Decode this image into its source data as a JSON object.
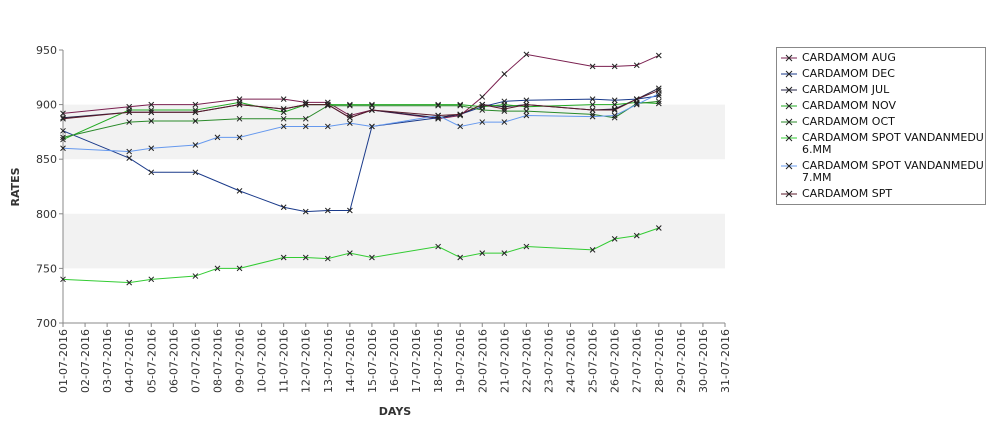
{
  "chart_data": {
    "type": "line",
    "title": "",
    "xlabel": "DAYS",
    "ylabel": "RATES",
    "ylim": [
      700,
      950
    ],
    "yticks": [
      700,
      750,
      800,
      850,
      900,
      950
    ],
    "grid": false,
    "legend_position": "right",
    "x_categories": [
      "01-07-2016",
      "02-07-2016",
      "03-07-2016",
      "04-07-2016",
      "05-07-2016",
      "06-07-2016",
      "07-07-2016",
      "08-07-2016",
      "09-07-2016",
      "10-07-2016",
      "11-07-2016",
      "12-07-2016",
      "13-07-2016",
      "14-07-2016",
      "15-07-2016",
      "16-07-2016",
      "17-07-2016",
      "18-07-2016",
      "19-07-2016",
      "20-07-2016",
      "21-07-2016",
      "22-07-2016",
      "23-07-2016",
      "24-07-2016",
      "25-07-2016",
      "26-07-2016",
      "27-07-2016",
      "28-07-2016",
      "29-07-2016",
      "30-07-2016",
      "31-07-2016"
    ],
    "series": [
      {
        "name": "CARDAMOM AUG",
        "color": "#7a1f4f",
        "dates": [
          "01-07-2016",
          "04-07-2016",
          "05-07-2016",
          "07-07-2016",
          "09-07-2016",
          "11-07-2016",
          "12-07-2016",
          "13-07-2016",
          "14-07-2016",
          "15-07-2016",
          "18-07-2016",
          "19-07-2016",
          "20-07-2016",
          "21-07-2016",
          "22-07-2016",
          "25-07-2016",
          "26-07-2016",
          "27-07-2016",
          "28-07-2016"
        ],
        "values": [
          892,
          898,
          900,
          900,
          905,
          905,
          902,
          902,
          890,
          895,
          887,
          890,
          907,
          928,
          946,
          935,
          935,
          936,
          945
        ]
      },
      {
        "name": "CARDAMOM DEC",
        "color": "#1a3a8a",
        "dates": [
          "01-07-2016",
          "04-07-2016",
          "05-07-2016",
          "07-07-2016",
          "09-07-2016",
          "11-07-2016",
          "12-07-2016",
          "13-07-2016",
          "14-07-2016",
          "15-07-2016",
          "18-07-2016",
          "19-07-2016",
          "20-07-2016",
          "21-07-2016",
          "22-07-2016",
          "25-07-2016",
          "26-07-2016",
          "27-07-2016",
          "28-07-2016"
        ],
        "values": [
          876,
          851,
          838,
          838,
          821,
          806,
          802,
          803,
          803,
          880,
          888,
          891,
          898,
          903,
          904,
          905,
          904,
          905,
          908
        ]
      },
      {
        "name": "CARDAMOM JUL",
        "color": "#222244",
        "dates": [
          "01-07-2016",
          "04-07-2016",
          "05-07-2016",
          "07-07-2016",
          "09-07-2016",
          "11-07-2016",
          "12-07-2016",
          "13-07-2016",
          "14-07-2016",
          "15-07-2016",
          "18-07-2016",
          "19-07-2016",
          "20-07-2016",
          "21-07-2016",
          "22-07-2016",
          "25-07-2016",
          "26-07-2016",
          "27-07-2016",
          "28-07-2016"
        ],
        "values": [
          888,
          893,
          893,
          893,
          900,
          896,
          900,
          900,
          888,
          895,
          888,
          891,
          900,
          898,
          900,
          895,
          896,
          905,
          915
        ]
      },
      {
        "name": "CARDAMOM NOV",
        "color": "#22aa22",
        "dates": [
          "01-07-2016",
          "04-07-2016",
          "05-07-2016",
          "07-07-2016",
          "09-07-2016",
          "11-07-2016",
          "12-07-2016",
          "13-07-2016",
          "14-07-2016",
          "15-07-2016",
          "18-07-2016",
          "19-07-2016",
          "20-07-2016",
          "21-07-2016",
          "22-07-2016",
          "25-07-2016",
          "26-07-2016",
          "27-07-2016",
          "28-07-2016"
        ],
        "values": [
          868,
          895,
          895,
          895,
          902,
          893,
          900,
          900,
          900,
          900,
          900,
          900,
          898,
          900,
          898,
          900,
          900,
          902,
          901
        ]
      },
      {
        "name": "CARDAMOM OCT",
        "color": "#2a8a2a",
        "dates": [
          "01-07-2016",
          "04-07-2016",
          "05-07-2016",
          "07-07-2016",
          "09-07-2016",
          "11-07-2016",
          "12-07-2016",
          "13-07-2016",
          "14-07-2016",
          "15-07-2016",
          "18-07-2016",
          "19-07-2016",
          "20-07-2016",
          "21-07-2016",
          "22-07-2016",
          "25-07-2016",
          "26-07-2016",
          "27-07-2016",
          "28-07-2016"
        ],
        "values": [
          870,
          884,
          885,
          885,
          887,
          887,
          887,
          899,
          899,
          899,
          899,
          899,
          895,
          894,
          894,
          891,
          888,
          901,
          903
        ]
      },
      {
        "name": "CARDAMOM SPOT VANDANMEDU 6.MM",
        "color": "#33cc33",
        "dates": [
          "01-07-2016",
          "04-07-2016",
          "05-07-2016",
          "07-07-2016",
          "08-07-2016",
          "09-07-2016",
          "11-07-2016",
          "12-07-2016",
          "13-07-2016",
          "14-07-2016",
          "15-07-2016",
          "18-07-2016",
          "19-07-2016",
          "20-07-2016",
          "21-07-2016",
          "22-07-2016",
          "25-07-2016",
          "26-07-2016",
          "27-07-2016",
          "28-07-2016"
        ],
        "values": [
          740,
          737,
          740,
          743,
          750,
          750,
          760,
          760,
          759,
          764,
          760,
          770,
          760,
          764,
          764,
          770,
          767,
          777,
          780,
          787
        ]
      },
      {
        "name": "CARDAMOM SPOT VANDANMEDU 7.MM",
        "color": "#6699ee",
        "dates": [
          "01-07-2016",
          "04-07-2016",
          "05-07-2016",
          "07-07-2016",
          "08-07-2016",
          "09-07-2016",
          "11-07-2016",
          "12-07-2016",
          "13-07-2016",
          "14-07-2016",
          "15-07-2016",
          "18-07-2016",
          "19-07-2016",
          "20-07-2016",
          "21-07-2016",
          "22-07-2016",
          "25-07-2016",
          "26-07-2016",
          "27-07-2016",
          "28-07-2016"
        ],
        "values": [
          860,
          857,
          860,
          863,
          870,
          870,
          880,
          880,
          880,
          883,
          880,
          890,
          880,
          884,
          884,
          890,
          889,
          890,
          900,
          910
        ]
      },
      {
        "name": "CARDAMOM SPT",
        "color": "#5a1a2a",
        "dates": [
          "01-07-2016",
          "04-07-2016",
          "05-07-2016",
          "07-07-2016",
          "09-07-2016",
          "11-07-2016",
          "12-07-2016",
          "13-07-2016",
          "14-07-2016",
          "15-07-2016",
          "18-07-2016",
          "19-07-2016",
          "20-07-2016",
          "21-07-2016",
          "22-07-2016",
          "25-07-2016",
          "26-07-2016",
          "27-07-2016",
          "28-07-2016"
        ],
        "values": [
          887,
          893,
          893,
          893,
          900,
          896,
          900,
          900,
          888,
          895,
          890,
          891,
          900,
          896,
          900,
          895,
          895,
          905,
          913
        ]
      }
    ],
    "legend_labels": [
      [
        "CARDAMOM AUG"
      ],
      [
        "CARDAMOM DEC"
      ],
      [
        "CARDAMOM JUL"
      ],
      [
        "CARDAMOM NOV"
      ],
      [
        "CARDAMOM OCT"
      ],
      [
        "CARDAMOM SPOT VANDANMEDU",
        "6.MM"
      ],
      [
        "CARDAMOM SPOT VANDANMEDU",
        "7.MM"
      ],
      [
        "CARDAMOM SPT"
      ]
    ]
  }
}
